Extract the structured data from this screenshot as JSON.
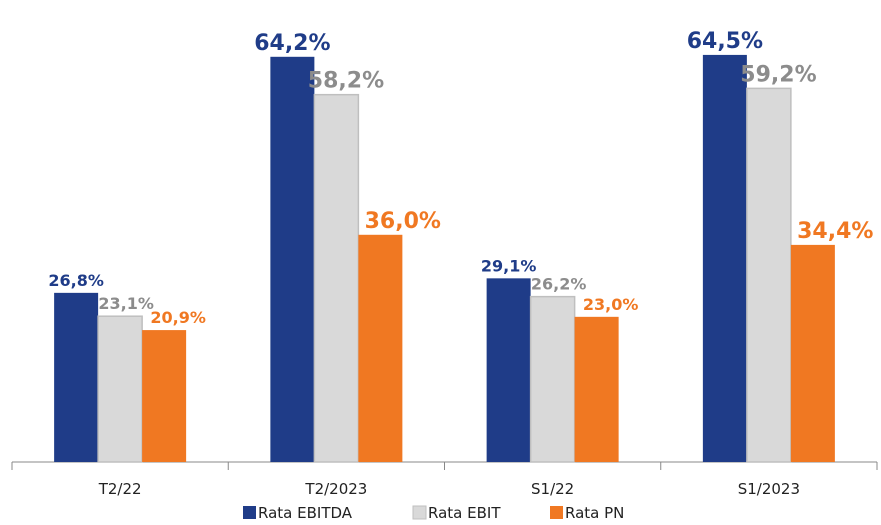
{
  "chart_data": {
    "type": "bar",
    "categories": [
      "T2/22",
      "T2/2023",
      "S1/22",
      "S1/2023"
    ],
    "series": [
      {
        "name": "Rata EBITDA",
        "color": "#1f3c88",
        "label_color": "#1f3c88",
        "values": [
          26.8,
          64.2,
          29.1,
          64.5
        ],
        "value_labels": [
          "26,8%",
          "64,2%",
          "29,1%",
          "64,5%"
        ]
      },
      {
        "name": "Rata EBIT",
        "color": "#d9d9d9",
        "label_color": "#8c8c8c",
        "values": [
          23.1,
          58.2,
          26.2,
          59.2
        ],
        "value_labels": [
          "23,1%",
          "58,2%",
          "26,2%",
          "59,2%"
        ]
      },
      {
        "name": "Rata PN",
        "color": "#f07822",
        "label_color": "#f07822",
        "values": [
          20.9,
          36.0,
          23.0,
          34.4
        ],
        "value_labels": [
          "20,9%",
          "36,0%",
          "23,0%",
          "34,4%"
        ]
      }
    ],
    "ylim": [
      0,
      73.2
    ]
  }
}
